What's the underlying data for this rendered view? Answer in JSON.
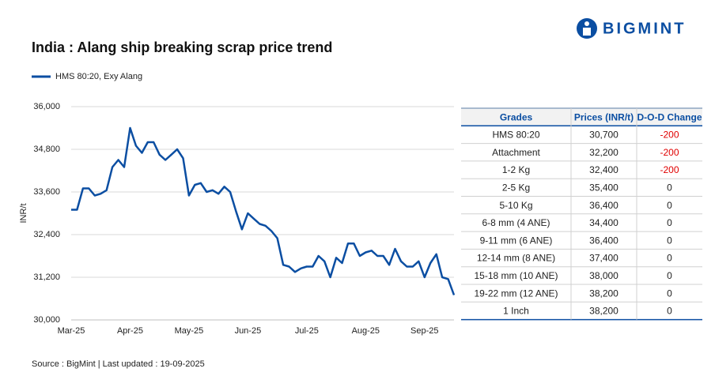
{
  "logo": "BIGMINT",
  "source": "Source : BigMint | Last updated : 19-09-2025",
  "chart_data": {
    "type": "line",
    "title": "India : Alang ship breaking scrap price trend",
    "y_label": "INR/t",
    "categories": [
      "Mar-25",
      null,
      null,
      null,
      null,
      null,
      null,
      null,
      null,
      null,
      "Apr-25",
      null,
      null,
      null,
      null,
      null,
      null,
      null,
      null,
      null,
      "May-25",
      null,
      null,
      null,
      null,
      null,
      null,
      null,
      null,
      null,
      "Jun-25",
      null,
      null,
      null,
      null,
      null,
      null,
      null,
      null,
      null,
      "Jul-25",
      null,
      null,
      null,
      null,
      null,
      null,
      null,
      null,
      null,
      "Aug-25",
      null,
      null,
      null,
      null,
      null,
      null,
      null,
      null,
      null,
      "Sep-25",
      null,
      null,
      null,
      null,
      null
    ],
    "series": [
      {
        "name": "HMS 80:20, Exy Alang",
        "color": "#0b4ea2",
        "values": [
          33100,
          33100,
          33700,
          33700,
          33500,
          33550,
          33650,
          34300,
          34500,
          34300,
          35400,
          34900,
          34700,
          35000,
          35000,
          34650,
          34500,
          34650,
          34800,
          34550,
          33500,
          33800,
          33850,
          33600,
          33650,
          33550,
          33750,
          33600,
          33050,
          32550,
          33000,
          32850,
          32700,
          32650,
          32500,
          32300,
          31550,
          31500,
          31350,
          31450,
          31500,
          31500,
          31800,
          31650,
          31200,
          31750,
          31600,
          32150,
          32150,
          31800,
          31900,
          31950,
          31800,
          31800,
          31550,
          32000,
          31650,
          31500,
          31500,
          31650,
          31200,
          31600,
          31850,
          31200,
          31150,
          30700
        ]
      }
    ],
    "ylim": [
      30000,
      36000
    ],
    "yticks": [
      {
        "value": 30000,
        "label": "30,000"
      },
      {
        "value": 31200,
        "label": "31,200"
      },
      {
        "value": 32400,
        "label": "32,400"
      },
      {
        "value": 33600,
        "label": "33,600"
      },
      {
        "value": 34800,
        "label": "34,800"
      },
      {
        "value": 36000,
        "label": "36,000"
      }
    ],
    "grid": true,
    "legend": "top-left"
  },
  "table": {
    "columns": [
      "Grades",
      "Prices (INR/t)",
      "D-O-D Change"
    ],
    "negative_color": "#e00000",
    "rows": [
      [
        "HMS 80:20",
        "30,700",
        "-200"
      ],
      [
        "Attachment",
        "32,200",
        "-200"
      ],
      [
        "1-2 Kg",
        "32,400",
        "-200"
      ],
      [
        "2-5 Kg",
        "35,400",
        "0"
      ],
      [
        "5-10 Kg",
        "36,400",
        "0"
      ],
      [
        "6-8 mm (4 ANE)",
        "34,400",
        "0"
      ],
      [
        "9-11 mm (6 ANE)",
        "36,400",
        "0"
      ],
      [
        "12-14 mm (8 ANE)",
        "37,400",
        "0"
      ],
      [
        "15-18 mm (10 ANE)",
        "38,000",
        "0"
      ],
      [
        "19-22 mm (12 ANE)",
        "38,200",
        "0"
      ],
      [
        "1 Inch",
        "38,200",
        "0"
      ]
    ]
  }
}
